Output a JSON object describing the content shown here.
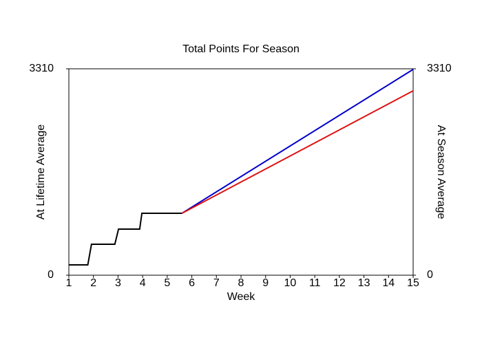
{
  "chart_data": {
    "type": "line",
    "title": "Total Points For Season",
    "x_label": "Week",
    "y_label": "At Lifetime Average",
    "y_label_color": "#0000cc",
    "y2_label": "At Season Average",
    "y2_label_color": "#dd1111",
    "xlim": [
      1,
      15
    ],
    "xticks": [
      1,
      2,
      3,
      4,
      5,
      6,
      7,
      8,
      9,
      10,
      11,
      12,
      13,
      14,
      15
    ],
    "ylim": [
      0,
      3310
    ],
    "yticks": [
      0,
      3310
    ],
    "y2lim": [
      0,
      3310
    ],
    "y2ticks": [
      0,
      3310
    ],
    "series": [
      {
        "color": "#000000",
        "x": [
          1,
          1.77,
          1.92,
          2.87,
          3.02,
          3.88,
          3.97,
          5.6
        ],
        "values": [
          165,
          165,
          496,
          496,
          739,
          739,
          993,
          993
        ]
      },
      {
        "color": "#0000cc",
        "x": [
          5.6,
          15
        ],
        "values": [
          993,
          3300
        ]
      },
      {
        "color": "#dd1111",
        "x": [
          5.6,
          15
        ],
        "values": [
          993,
          2957
        ]
      }
    ]
  }
}
